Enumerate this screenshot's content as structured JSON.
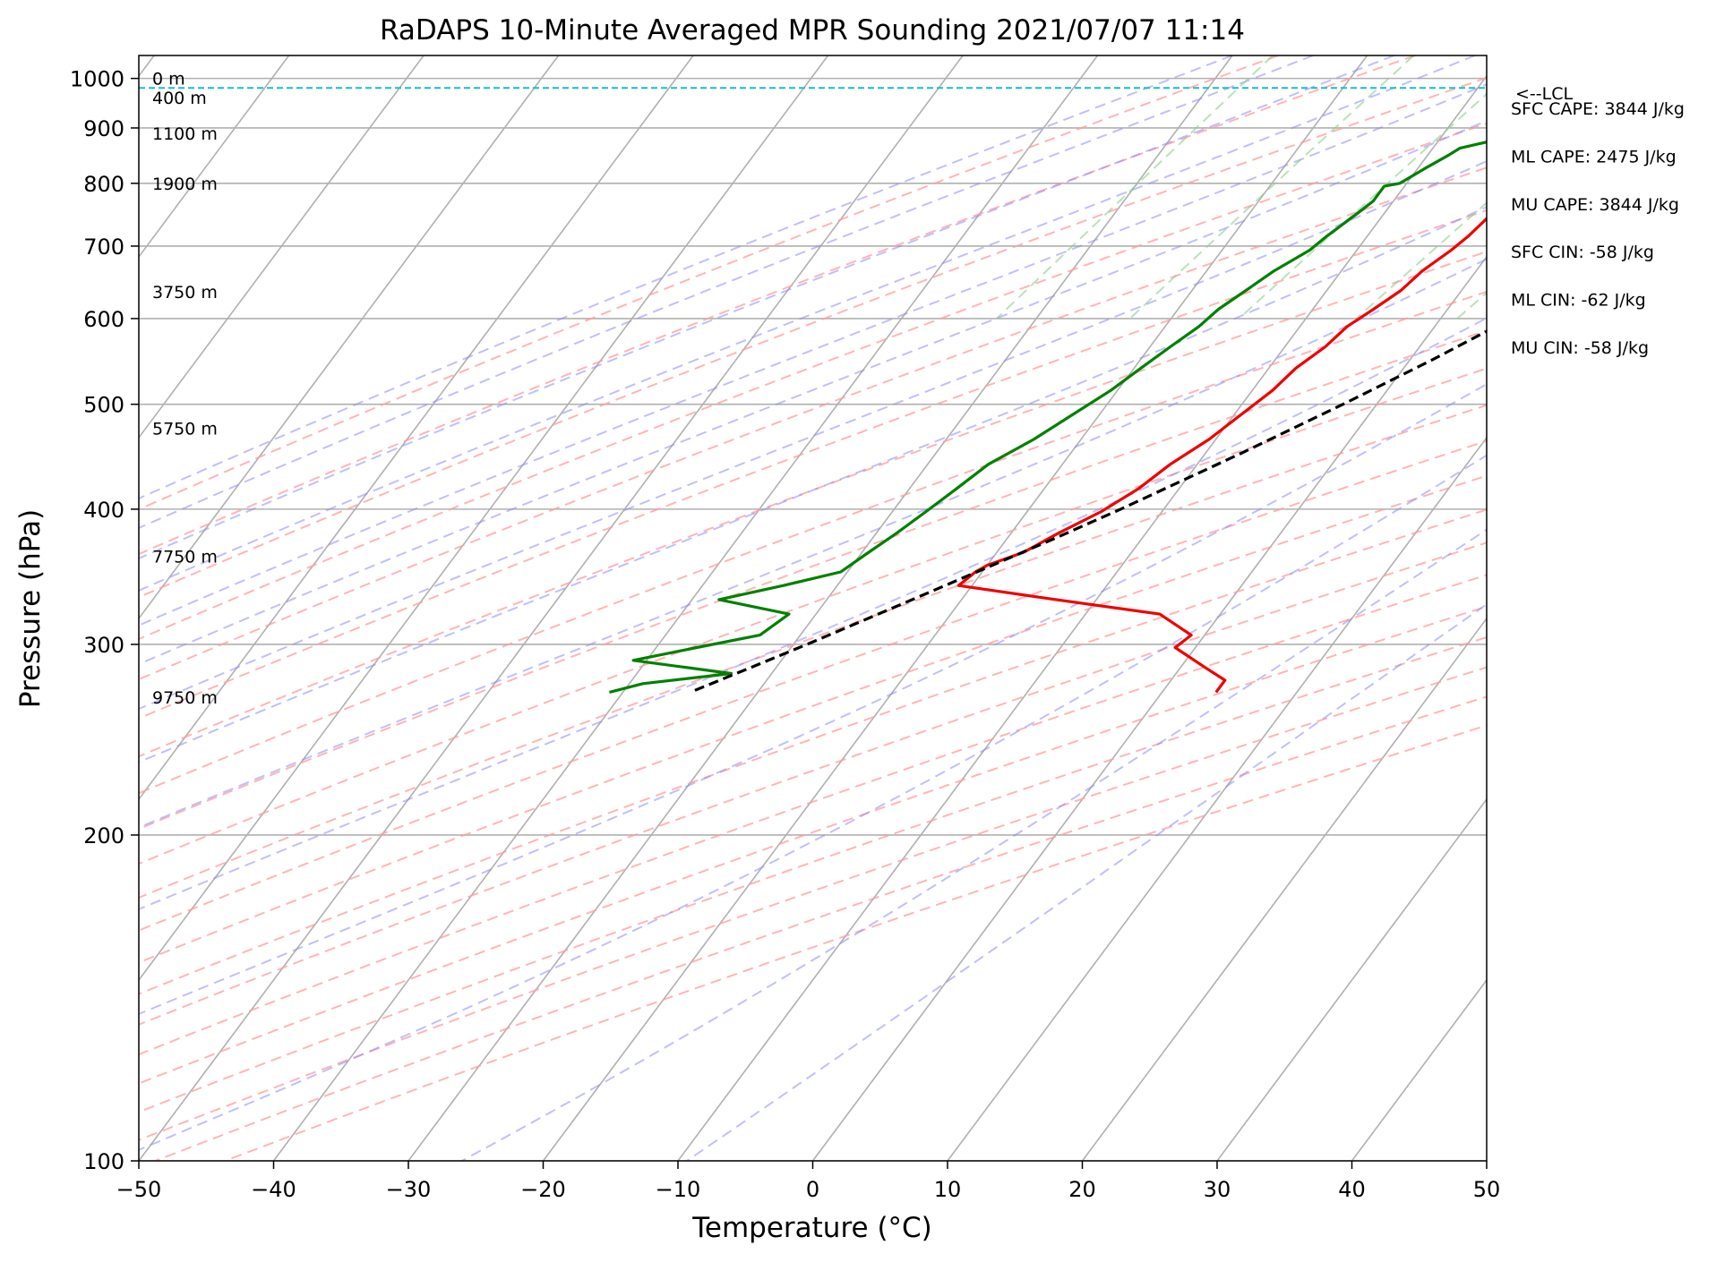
{
  "chart_data": {
    "type": "skew-t",
    "title": "RaDAPS 10-Minute Averaged MPR Sounding 2021/07/07 11:14",
    "xlabel": "Temperature (°C)",
    "ylabel": "Pressure (hPa)",
    "xlim": [
      -50,
      50
    ],
    "ylim": [
      1050,
      100
    ],
    "log_pressure_axis": true,
    "x_ticks": [
      -50,
      -40,
      -30,
      -20,
      -10,
      0,
      10,
      20,
      30,
      40,
      50
    ],
    "x_tick_labels": [
      "−50",
      "−40",
      "−30",
      "−20",
      "−10",
      "0",
      "10",
      "20",
      "30",
      "40",
      "50"
    ],
    "y_ticks": [
      100,
      200,
      300,
      400,
      500,
      600,
      700,
      800,
      900,
      1000
    ],
    "y_tick_labels": [
      "100",
      "200",
      "300",
      "400",
      "500",
      "600",
      "700",
      "800",
      "900",
      "1000"
    ],
    "grid": true,
    "reference_lines": {
      "isotherms": {
        "color": "#b0b0b0"
      },
      "dry_adiabats": {
        "color": "#ff9c9c"
      },
      "moist_adiabats": {
        "color": "#8c8cf2"
      },
      "mixing_ratio": {
        "color": "#8ccf8c"
      }
    },
    "series": [
      {
        "color": "#ee0000",
        "points": [
          [
            1000,
            23.5
          ],
          [
            994,
            27.0
          ],
          [
            985,
            27.5
          ],
          [
            975,
            27.0
          ],
          [
            962,
            24.5
          ],
          [
            955,
            22.5
          ],
          [
            938,
            18.5
          ],
          [
            933,
            14.0
          ],
          [
            921,
            12.0
          ],
          [
            911,
            6.0
          ],
          [
            892,
            3.5
          ],
          [
            876,
            1.5
          ],
          [
            862,
            0.5
          ],
          [
            848,
            0.0
          ],
          [
            825,
            -0.5
          ],
          [
            800,
            -1.5
          ],
          [
            795,
            -1.0
          ],
          [
            750,
            -2.0
          ],
          [
            715,
            -2.5
          ],
          [
            694,
            -3.0
          ],
          [
            664,
            -4.0
          ],
          [
            637,
            -4.5
          ],
          [
            612,
            -5.5
          ],
          [
            590,
            -6.5
          ],
          [
            565,
            -7.0
          ],
          [
            540,
            -8.0
          ],
          [
            515,
            -8.5
          ],
          [
            489,
            -9.5
          ],
          [
            464,
            -10.5
          ],
          [
            440,
            -12.0
          ],
          [
            418,
            -13.0
          ],
          [
            398,
            -14.5
          ],
          [
            380,
            -16.5
          ],
          [
            365,
            -18.0
          ],
          [
            355,
            -20.0
          ],
          [
            350,
            -20.5
          ],
          [
            340,
            -21.0
          ],
          [
            330,
            -13.0
          ],
          [
            320,
            -4.5
          ],
          [
            306,
            -1.0
          ],
          [
            298,
            -1.5
          ],
          [
            285,
            2.0
          ],
          [
            278,
            4.0
          ],
          [
            271,
            4.0
          ]
        ]
      },
      {
        "color": "#008000",
        "points": [
          [
            1000,
            22.0
          ],
          [
            995,
            19.5
          ],
          [
            988,
            19.0
          ],
          [
            975,
            17.0
          ],
          [
            962,
            17.5
          ],
          [
            955,
            17.5
          ],
          [
            938,
            17.5
          ],
          [
            921,
            8.0
          ],
          [
            911,
            5.0
          ],
          [
            892,
            -4.0
          ],
          [
            876,
            -6.0
          ],
          [
            862,
            -8.0
          ],
          [
            848,
            -8.5
          ],
          [
            825,
            -9.5
          ],
          [
            800,
            -10.5
          ],
          [
            795,
            -11.5
          ],
          [
            770,
            -11.5
          ],
          [
            750,
            -12.0
          ],
          [
            715,
            -13.0
          ],
          [
            694,
            -13.5
          ],
          [
            664,
            -15.0
          ],
          [
            637,
            -16.0
          ],
          [
            612,
            -17.0
          ],
          [
            590,
            -17.5
          ],
          [
            565,
            -18.5
          ],
          [
            540,
            -19.5
          ],
          [
            515,
            -20.5
          ],
          [
            489,
            -22.0
          ],
          [
            464,
            -23.5
          ],
          [
            440,
            -25.5
          ],
          [
            418,
            -26.5
          ],
          [
            398,
            -27.5
          ],
          [
            380,
            -28.5
          ],
          [
            365,
            -29.5
          ],
          [
            350,
            -30.5
          ],
          [
            340,
            -34.0
          ],
          [
            330,
            -38.0
          ],
          [
            320,
            -32.0
          ],
          [
            306,
            -33.0
          ],
          [
            298,
            -37.0
          ],
          [
            290,
            -41.0
          ],
          [
            282,
            -33.0
          ],
          [
            276,
            -39.0
          ],
          [
            271,
            -41.0
          ]
        ]
      },
      {
        "color": "#000000",
        "points": [
          [
            1000,
            23.0
          ],
          [
            975,
            22.2
          ],
          [
            950,
            21.5
          ],
          [
            925,
            20.6
          ],
          [
            900,
            19.7
          ],
          [
            850,
            17.9
          ],
          [
            800,
            15.9
          ],
          [
            750,
            13.7
          ],
          [
            700,
            11.2
          ],
          [
            650,
            8.4
          ],
          [
            600,
            5.2
          ],
          [
            550,
            1.7
          ],
          [
            500,
            -2.5
          ],
          [
            450,
            -7.4
          ],
          [
            400,
            -13.2
          ],
          [
            375,
            -16.6
          ],
          [
            350,
            -20.4
          ],
          [
            325,
            -24.5
          ],
          [
            300,
            -29.0
          ],
          [
            285,
            -32.0
          ],
          [
            271,
            -35.0
          ]
        ]
      }
    ],
    "lcl_pressure": 980,
    "lcl_label": "<--LCL",
    "height_labels": [
      {
        "p": 1000,
        "text": "0 m"
      },
      {
        "p": 960,
        "text": "400 m"
      },
      {
        "p": 890,
        "text": "1100 m"
      },
      {
        "p": 800,
        "text": "1900 m"
      },
      {
        "p": 635,
        "text": "3750 m"
      },
      {
        "p": 475,
        "text": "5750 m"
      },
      {
        "p": 362,
        "text": "7750 m"
      },
      {
        "p": 268,
        "text": "9750 m"
      }
    ],
    "annotations": [
      "SFC CAPE: 3844 J/kg",
      "ML CAPE: 2475 J/kg",
      "MU CAPE: 3844 J/kg",
      "SFC CIN: -58 J/kg",
      "ML CIN: -62 J/kg",
      "MU CIN: -58 J/kg"
    ]
  }
}
